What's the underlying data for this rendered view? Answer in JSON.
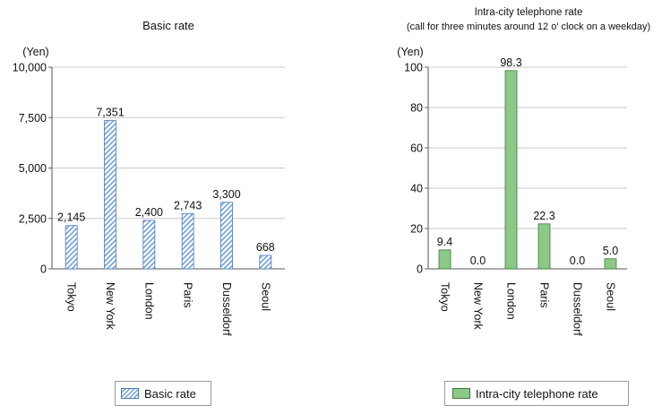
{
  "chart_data": [
    {
      "type": "bar",
      "title": "Basic rate",
      "subtitle": "",
      "unit_label": "(Yen)",
      "ylim": [
        0,
        10000
      ],
      "yticks": [
        "0",
        "2,500",
        "5,000",
        "7,500",
        "10,000"
      ],
      "ytick_values": [
        0,
        2500,
        5000,
        7500,
        10000
      ],
      "categories": [
        "Tokyo",
        "New York",
        "London",
        "Paris",
        "Dusseldorf",
        "Seoul"
      ],
      "values": [
        2145,
        7351,
        2400,
        2743,
        3300,
        668
      ],
      "value_labels": [
        "2,145",
        "7,351",
        "2,400",
        "2,743",
        "3,300",
        "668"
      ],
      "grid": true,
      "legend": "Basic rate",
      "colors": {
        "fill": "#6f9fd8",
        "stroke": "#4a78b8"
      }
    },
    {
      "type": "bar",
      "title": "Intra-city telephone rate",
      "subtitle": "(call for three minutes around 12 o' clock on a weekday)",
      "unit_label": "(Yen)",
      "ylim": [
        0,
        100
      ],
      "yticks": [
        "0",
        "20",
        "40",
        "60",
        "80",
        "100"
      ],
      "ytick_values": [
        0,
        20,
        40,
        60,
        80,
        100
      ],
      "categories": [
        "Tokyo",
        "New York",
        "London",
        "Paris",
        "Dusseldorf",
        "Seoul"
      ],
      "values": [
        9.4,
        0.0,
        98.3,
        22.3,
        0.0,
        5.0
      ],
      "value_labels": [
        "9.4",
        "0.0",
        "98.3",
        "22.3",
        "0.0",
        "5.0"
      ],
      "grid": true,
      "legend": "Intra-city telephone rate",
      "colors": {
        "fill": "#8cc887",
        "stroke": "#3f7a3a"
      }
    }
  ]
}
